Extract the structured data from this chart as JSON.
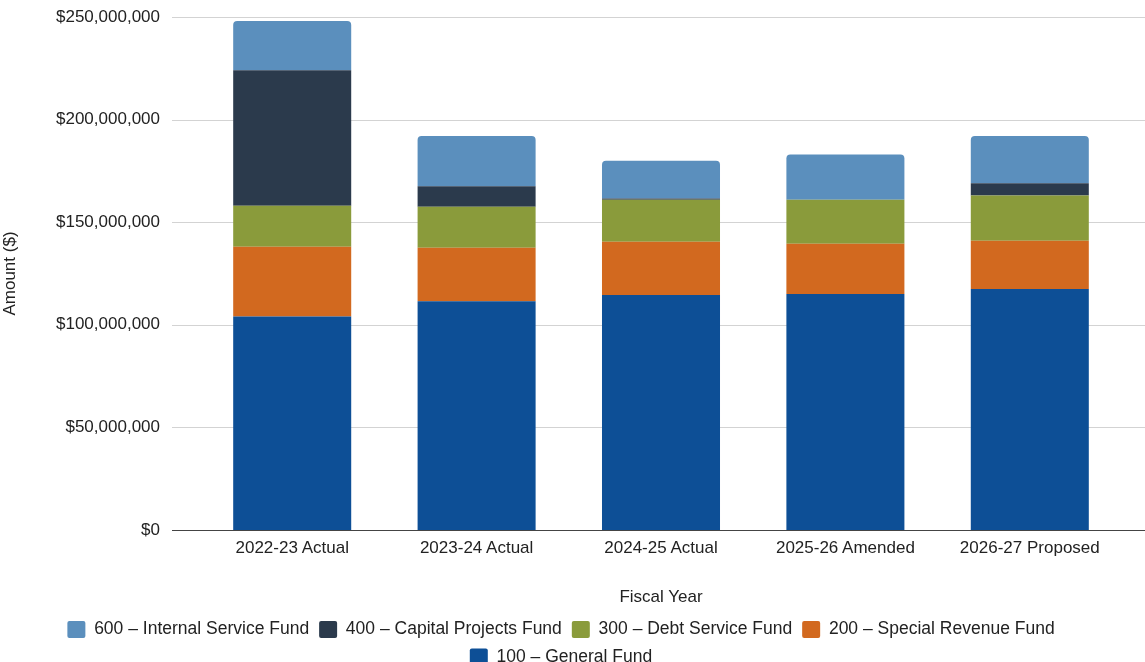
{
  "chart_data": {
    "type": "bar",
    "stacked": true,
    "xlabel": "Fiscal Year",
    "ylabel": "Amount ($)",
    "categories": [
      "2022-23 Actual",
      "2023-24 Actual",
      "2024-25 Actual",
      "2025-26 Amended",
      "2026-27 Proposed"
    ],
    "series": [
      {
        "name": "100 – General Fund",
        "color": "#0d4f96",
        "values": [
          104000000,
          111500000,
          114500000,
          115000000,
          117500000
        ]
      },
      {
        "name": "200 – Special Revenue Fund",
        "color": "#d2691f",
        "values": [
          34000000,
          26000000,
          26000000,
          24500000,
          23500000
        ]
      },
      {
        "name": "300 – Debt Service Fund",
        "color": "#8a9b3b",
        "values": [
          20000000,
          20000000,
          20500000,
          21500000,
          22000000
        ]
      },
      {
        "name": "400 – Capital Projects Fund",
        "color": "#2b3a4c",
        "values": [
          66000000,
          10000000,
          500000,
          0,
          6000000
        ]
      },
      {
        "name": "600 – Internal Service Fund",
        "color": "#5b8fbd",
        "values": [
          24000000,
          24500000,
          18500000,
          22000000,
          23000000
        ]
      }
    ],
    "ylim": [
      0,
      250000000
    ],
    "yticks": [
      {
        "value": 0,
        "label": "$0"
      },
      {
        "value": 50000000,
        "label": "$50,000,000"
      },
      {
        "value": 100000000,
        "label": "$100,000,000"
      },
      {
        "value": 150000000,
        "label": "$150,000,000"
      },
      {
        "value": 200000000,
        "label": "$200,000,000"
      },
      {
        "value": 250000000,
        "label": "$250,000,000"
      }
    ],
    "grid": "y",
    "legend": "bottom"
  }
}
